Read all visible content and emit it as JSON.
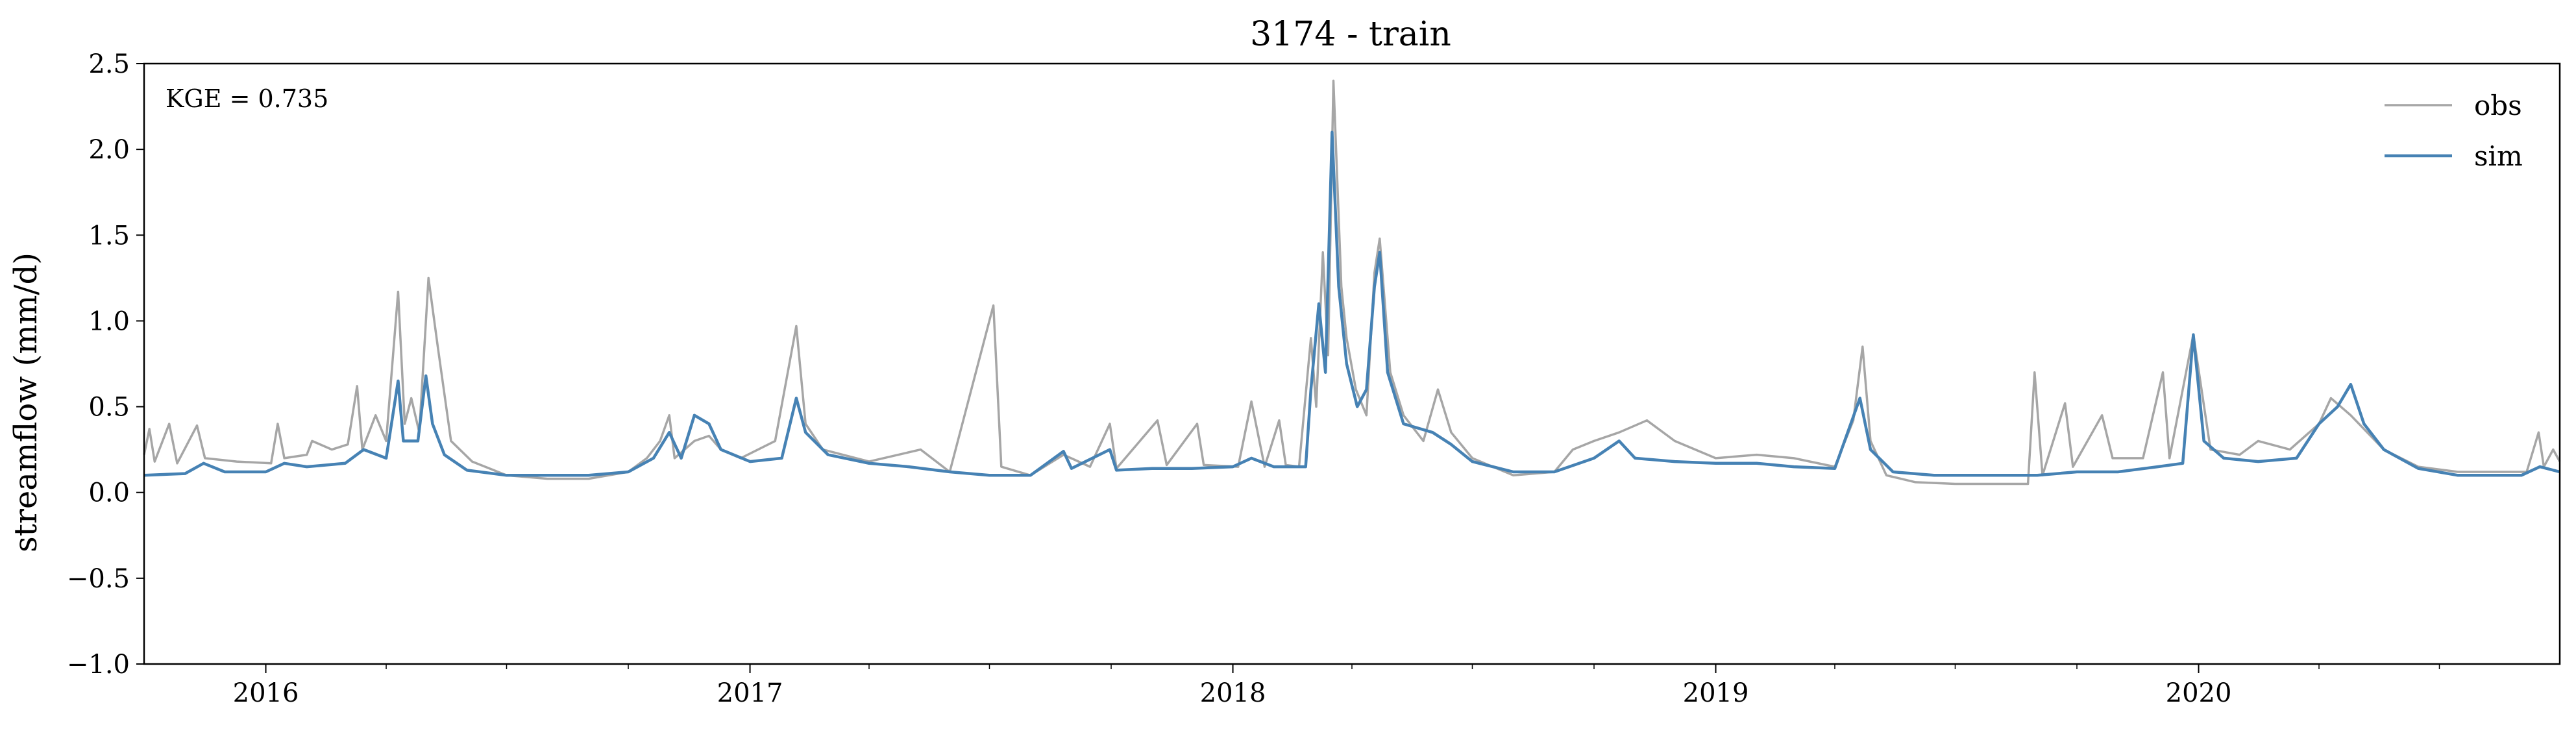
{
  "chart_data": {
    "type": "line",
    "title": "3174 - train",
    "xlabel": "",
    "ylabel": "streamflow (mm/d)",
    "annotation": "KGE = 0.735",
    "legend_position": "upper-right",
    "grid": false,
    "xlim": [
      "2015-10-01",
      "2020-09-30"
    ],
    "ylim": [
      -1.0,
      2.5
    ],
    "yticks": [
      -1.0,
      -0.5,
      0.0,
      0.5,
      1.0,
      1.5,
      2.0,
      2.5
    ],
    "ytick_labels": [
      "−1.0",
      "−0.5",
      "0.0",
      "0.5",
      "1.0",
      "1.5",
      "2.0",
      "2.5"
    ],
    "xticks": [
      "2016-01-01",
      "2017-01-01",
      "2018-01-01",
      "2019-01-01",
      "2020-01-01"
    ],
    "xtick_labels": [
      "2016",
      "2017",
      "2018",
      "2019",
      "2020"
    ],
    "series": [
      {
        "name": "obs",
        "color": "#a6a6a6",
        "points": [
          [
            "2015-10-01",
            0.22
          ],
          [
            "2015-10-05",
            0.37
          ],
          [
            "2015-10-09",
            0.18
          ],
          [
            "2015-10-20",
            0.4
          ],
          [
            "2015-10-26",
            0.17
          ],
          [
            "2015-11-10",
            0.39
          ],
          [
            "2015-11-16",
            0.2
          ],
          [
            "2015-12-10",
            0.18
          ],
          [
            "2016-01-05",
            0.17
          ],
          [
            "2016-01-10",
            0.4
          ],
          [
            "2016-01-15",
            0.2
          ],
          [
            "2016-02-01",
            0.22
          ],
          [
            "2016-02-05",
            0.3
          ],
          [
            "2016-02-20",
            0.25
          ],
          [
            "2016-03-03",
            0.28
          ],
          [
            "2016-03-10",
            0.62
          ],
          [
            "2016-03-14",
            0.25
          ],
          [
            "2016-03-24",
            0.45
          ],
          [
            "2016-04-01",
            0.3
          ],
          [
            "2016-04-10",
            1.17
          ],
          [
            "2016-04-15",
            0.4
          ],
          [
            "2016-04-20",
            0.55
          ],
          [
            "2016-04-26",
            0.35
          ],
          [
            "2016-05-03",
            1.25
          ],
          [
            "2016-05-10",
            0.85
          ],
          [
            "2016-05-20",
            0.3
          ],
          [
            "2016-06-05",
            0.18
          ],
          [
            "2016-07-01",
            0.1
          ],
          [
            "2016-08-01",
            0.08
          ],
          [
            "2016-09-01",
            0.08
          ],
          [
            "2016-10-01",
            0.12
          ],
          [
            "2016-10-15",
            0.2
          ],
          [
            "2016-10-25",
            0.3
          ],
          [
            "2016-11-01",
            0.45
          ],
          [
            "2016-11-05",
            0.2
          ],
          [
            "2016-11-20",
            0.3
          ],
          [
            "2016-12-01",
            0.33
          ],
          [
            "2016-12-10",
            0.25
          ],
          [
            "2016-12-25",
            0.2
          ],
          [
            "2017-01-20",
            0.3
          ],
          [
            "2017-02-05",
            0.97
          ],
          [
            "2017-02-12",
            0.4
          ],
          [
            "2017-02-25",
            0.25
          ],
          [
            "2017-04-01",
            0.18
          ],
          [
            "2017-05-10",
            0.25
          ],
          [
            "2017-06-01",
            0.12
          ],
          [
            "2017-07-04",
            1.09
          ],
          [
            "2017-07-10",
            0.15
          ],
          [
            "2017-08-01",
            0.1
          ],
          [
            "2017-08-26",
            0.22
          ],
          [
            "2017-09-15",
            0.15
          ],
          [
            "2017-09-30",
            0.4
          ],
          [
            "2017-10-05",
            0.14
          ],
          [
            "2017-11-05",
            0.42
          ],
          [
            "2017-11-12",
            0.16
          ],
          [
            "2017-12-05",
            0.4
          ],
          [
            "2017-12-10",
            0.16
          ],
          [
            "2018-01-05",
            0.15
          ],
          [
            "2018-01-15",
            0.53
          ],
          [
            "2018-01-25",
            0.15
          ],
          [
            "2018-02-05",
            0.42
          ],
          [
            "2018-02-10",
            0.16
          ],
          [
            "2018-02-20",
            0.15
          ],
          [
            "2018-03-01",
            0.9
          ],
          [
            "2018-03-05",
            0.5
          ],
          [
            "2018-03-10",
            1.4
          ],
          [
            "2018-03-14",
            0.8
          ],
          [
            "2018-03-18",
            2.4
          ],
          [
            "2018-03-24",
            1.2
          ],
          [
            "2018-03-28",
            0.9
          ],
          [
            "2018-04-04",
            0.6
          ],
          [
            "2018-04-12",
            0.45
          ],
          [
            "2018-04-18",
            1.28
          ],
          [
            "2018-04-22",
            1.48
          ],
          [
            "2018-04-30",
            0.7
          ],
          [
            "2018-05-10",
            0.45
          ],
          [
            "2018-05-25",
            0.3
          ],
          [
            "2018-06-05",
            0.6
          ],
          [
            "2018-06-15",
            0.35
          ],
          [
            "2018-07-01",
            0.2
          ],
          [
            "2018-08-01",
            0.1
          ],
          [
            "2018-09-01",
            0.12
          ],
          [
            "2018-09-15",
            0.25
          ],
          [
            "2018-10-01",
            0.3
          ],
          [
            "2018-10-20",
            0.35
          ],
          [
            "2018-11-10",
            0.42
          ],
          [
            "2018-12-01",
            0.3
          ],
          [
            "2019-01-01",
            0.2
          ],
          [
            "2019-02-01",
            0.22
          ],
          [
            "2019-03-01",
            0.2
          ],
          [
            "2019-04-01",
            0.15
          ],
          [
            "2019-04-15",
            0.42
          ],
          [
            "2019-04-22",
            0.85
          ],
          [
            "2019-04-28",
            0.3
          ],
          [
            "2019-05-10",
            0.1
          ],
          [
            "2019-06-01",
            0.06
          ],
          [
            "2019-07-01",
            0.05
          ],
          [
            "2019-08-01",
            0.05
          ],
          [
            "2019-08-25",
            0.05
          ],
          [
            "2019-08-30",
            0.7
          ],
          [
            "2019-09-05",
            0.1
          ],
          [
            "2019-09-22",
            0.52
          ],
          [
            "2019-09-28",
            0.15
          ],
          [
            "2019-10-20",
            0.45
          ],
          [
            "2019-10-28",
            0.2
          ],
          [
            "2019-11-20",
            0.2
          ],
          [
            "2019-12-05",
            0.7
          ],
          [
            "2019-12-10",
            0.2
          ],
          [
            "2019-12-28",
            0.92
          ],
          [
            "2020-01-10",
            0.25
          ],
          [
            "2020-02-01",
            0.22
          ],
          [
            "2020-02-15",
            0.3
          ],
          [
            "2020-03-10",
            0.25
          ],
          [
            "2020-04-01",
            0.4
          ],
          [
            "2020-04-10",
            0.55
          ],
          [
            "2020-04-25",
            0.45
          ],
          [
            "2020-05-20",
            0.25
          ],
          [
            "2020-06-15",
            0.15
          ],
          [
            "2020-07-15",
            0.12
          ],
          [
            "2020-08-15",
            0.12
          ],
          [
            "2020-09-05",
            0.12
          ],
          [
            "2020-09-14",
            0.35
          ],
          [
            "2020-09-18",
            0.15
          ],
          [
            "2020-09-25",
            0.25
          ],
          [
            "2020-09-30",
            0.18
          ]
        ]
      },
      {
        "name": "sim",
        "color": "#4682b4",
        "points": [
          [
            "2015-10-01",
            0.1
          ],
          [
            "2015-11-01",
            0.11
          ],
          [
            "2015-11-15",
            0.17
          ],
          [
            "2015-12-01",
            0.12
          ],
          [
            "2016-01-01",
            0.12
          ],
          [
            "2016-01-15",
            0.17
          ],
          [
            "2016-02-01",
            0.15
          ],
          [
            "2016-03-01",
            0.17
          ],
          [
            "2016-03-15",
            0.25
          ],
          [
            "2016-04-01",
            0.2
          ],
          [
            "2016-04-10",
            0.65
          ],
          [
            "2016-04-14",
            0.3
          ],
          [
            "2016-04-25",
            0.3
          ],
          [
            "2016-05-01",
            0.68
          ],
          [
            "2016-05-06",
            0.4
          ],
          [
            "2016-05-15",
            0.22
          ],
          [
            "2016-06-01",
            0.13
          ],
          [
            "2016-07-01",
            0.1
          ],
          [
            "2016-09-01",
            0.1
          ],
          [
            "2016-10-01",
            0.12
          ],
          [
            "2016-10-20",
            0.2
          ],
          [
            "2016-11-01",
            0.35
          ],
          [
            "2016-11-10",
            0.2
          ],
          [
            "2016-11-20",
            0.45
          ],
          [
            "2016-12-01",
            0.4
          ],
          [
            "2016-12-10",
            0.25
          ],
          [
            "2017-01-01",
            0.18
          ],
          [
            "2017-01-25",
            0.2
          ],
          [
            "2017-02-05",
            0.55
          ],
          [
            "2017-02-12",
            0.35
          ],
          [
            "2017-03-01",
            0.22
          ],
          [
            "2017-04-01",
            0.17
          ],
          [
            "2017-05-01",
            0.15
          ],
          [
            "2017-06-01",
            0.12
          ],
          [
            "2017-07-01",
            0.1
          ],
          [
            "2017-08-01",
            0.1
          ],
          [
            "2017-08-26",
            0.24
          ],
          [
            "2017-09-01",
            0.14
          ],
          [
            "2017-09-30",
            0.25
          ],
          [
            "2017-10-05",
            0.13
          ],
          [
            "2017-11-01",
            0.14
          ],
          [
            "2017-12-01",
            0.14
          ],
          [
            "2018-01-01",
            0.15
          ],
          [
            "2018-01-15",
            0.2
          ],
          [
            "2018-02-01",
            0.15
          ],
          [
            "2018-02-25",
            0.15
          ],
          [
            "2018-03-01",
            0.6
          ],
          [
            "2018-03-07",
            1.1
          ],
          [
            "2018-03-12",
            0.7
          ],
          [
            "2018-03-17",
            2.1
          ],
          [
            "2018-03-22",
            1.2
          ],
          [
            "2018-03-28",
            0.75
          ],
          [
            "2018-04-05",
            0.5
          ],
          [
            "2018-04-12",
            0.6
          ],
          [
            "2018-04-18",
            1.2
          ],
          [
            "2018-04-22",
            1.4
          ],
          [
            "2018-04-28",
            0.7
          ],
          [
            "2018-05-10",
            0.4
          ],
          [
            "2018-06-01",
            0.35
          ],
          [
            "2018-06-15",
            0.28
          ],
          [
            "2018-07-01",
            0.18
          ],
          [
            "2018-08-01",
            0.12
          ],
          [
            "2018-09-01",
            0.12
          ],
          [
            "2018-10-01",
            0.2
          ],
          [
            "2018-10-20",
            0.3
          ],
          [
            "2018-11-01",
            0.2
          ],
          [
            "2018-12-01",
            0.18
          ],
          [
            "2019-01-01",
            0.17
          ],
          [
            "2019-02-01",
            0.17
          ],
          [
            "2019-03-01",
            0.15
          ],
          [
            "2019-04-01",
            0.14
          ],
          [
            "2019-04-20",
            0.55
          ],
          [
            "2019-04-28",
            0.25
          ],
          [
            "2019-05-15",
            0.12
          ],
          [
            "2019-06-15",
            0.1
          ],
          [
            "2019-08-01",
            0.1
          ],
          [
            "2019-09-01",
            0.1
          ],
          [
            "2019-10-01",
            0.12
          ],
          [
            "2019-11-01",
            0.12
          ],
          [
            "2019-12-01",
            0.15
          ],
          [
            "2019-12-20",
            0.17
          ],
          [
            "2019-12-28",
            0.92
          ],
          [
            "2020-01-05",
            0.3
          ],
          [
            "2020-01-20",
            0.2
          ],
          [
            "2020-02-15",
            0.18
          ],
          [
            "2020-03-15",
            0.2
          ],
          [
            "2020-04-01",
            0.4
          ],
          [
            "2020-04-15",
            0.5
          ],
          [
            "2020-04-25",
            0.63
          ],
          [
            "2020-05-05",
            0.4
          ],
          [
            "2020-05-20",
            0.25
          ],
          [
            "2020-06-15",
            0.14
          ],
          [
            "2020-07-15",
            0.1
          ],
          [
            "2020-09-01",
            0.1
          ],
          [
            "2020-09-15",
            0.15
          ],
          [
            "2020-09-30",
            0.12
          ]
        ]
      }
    ]
  }
}
